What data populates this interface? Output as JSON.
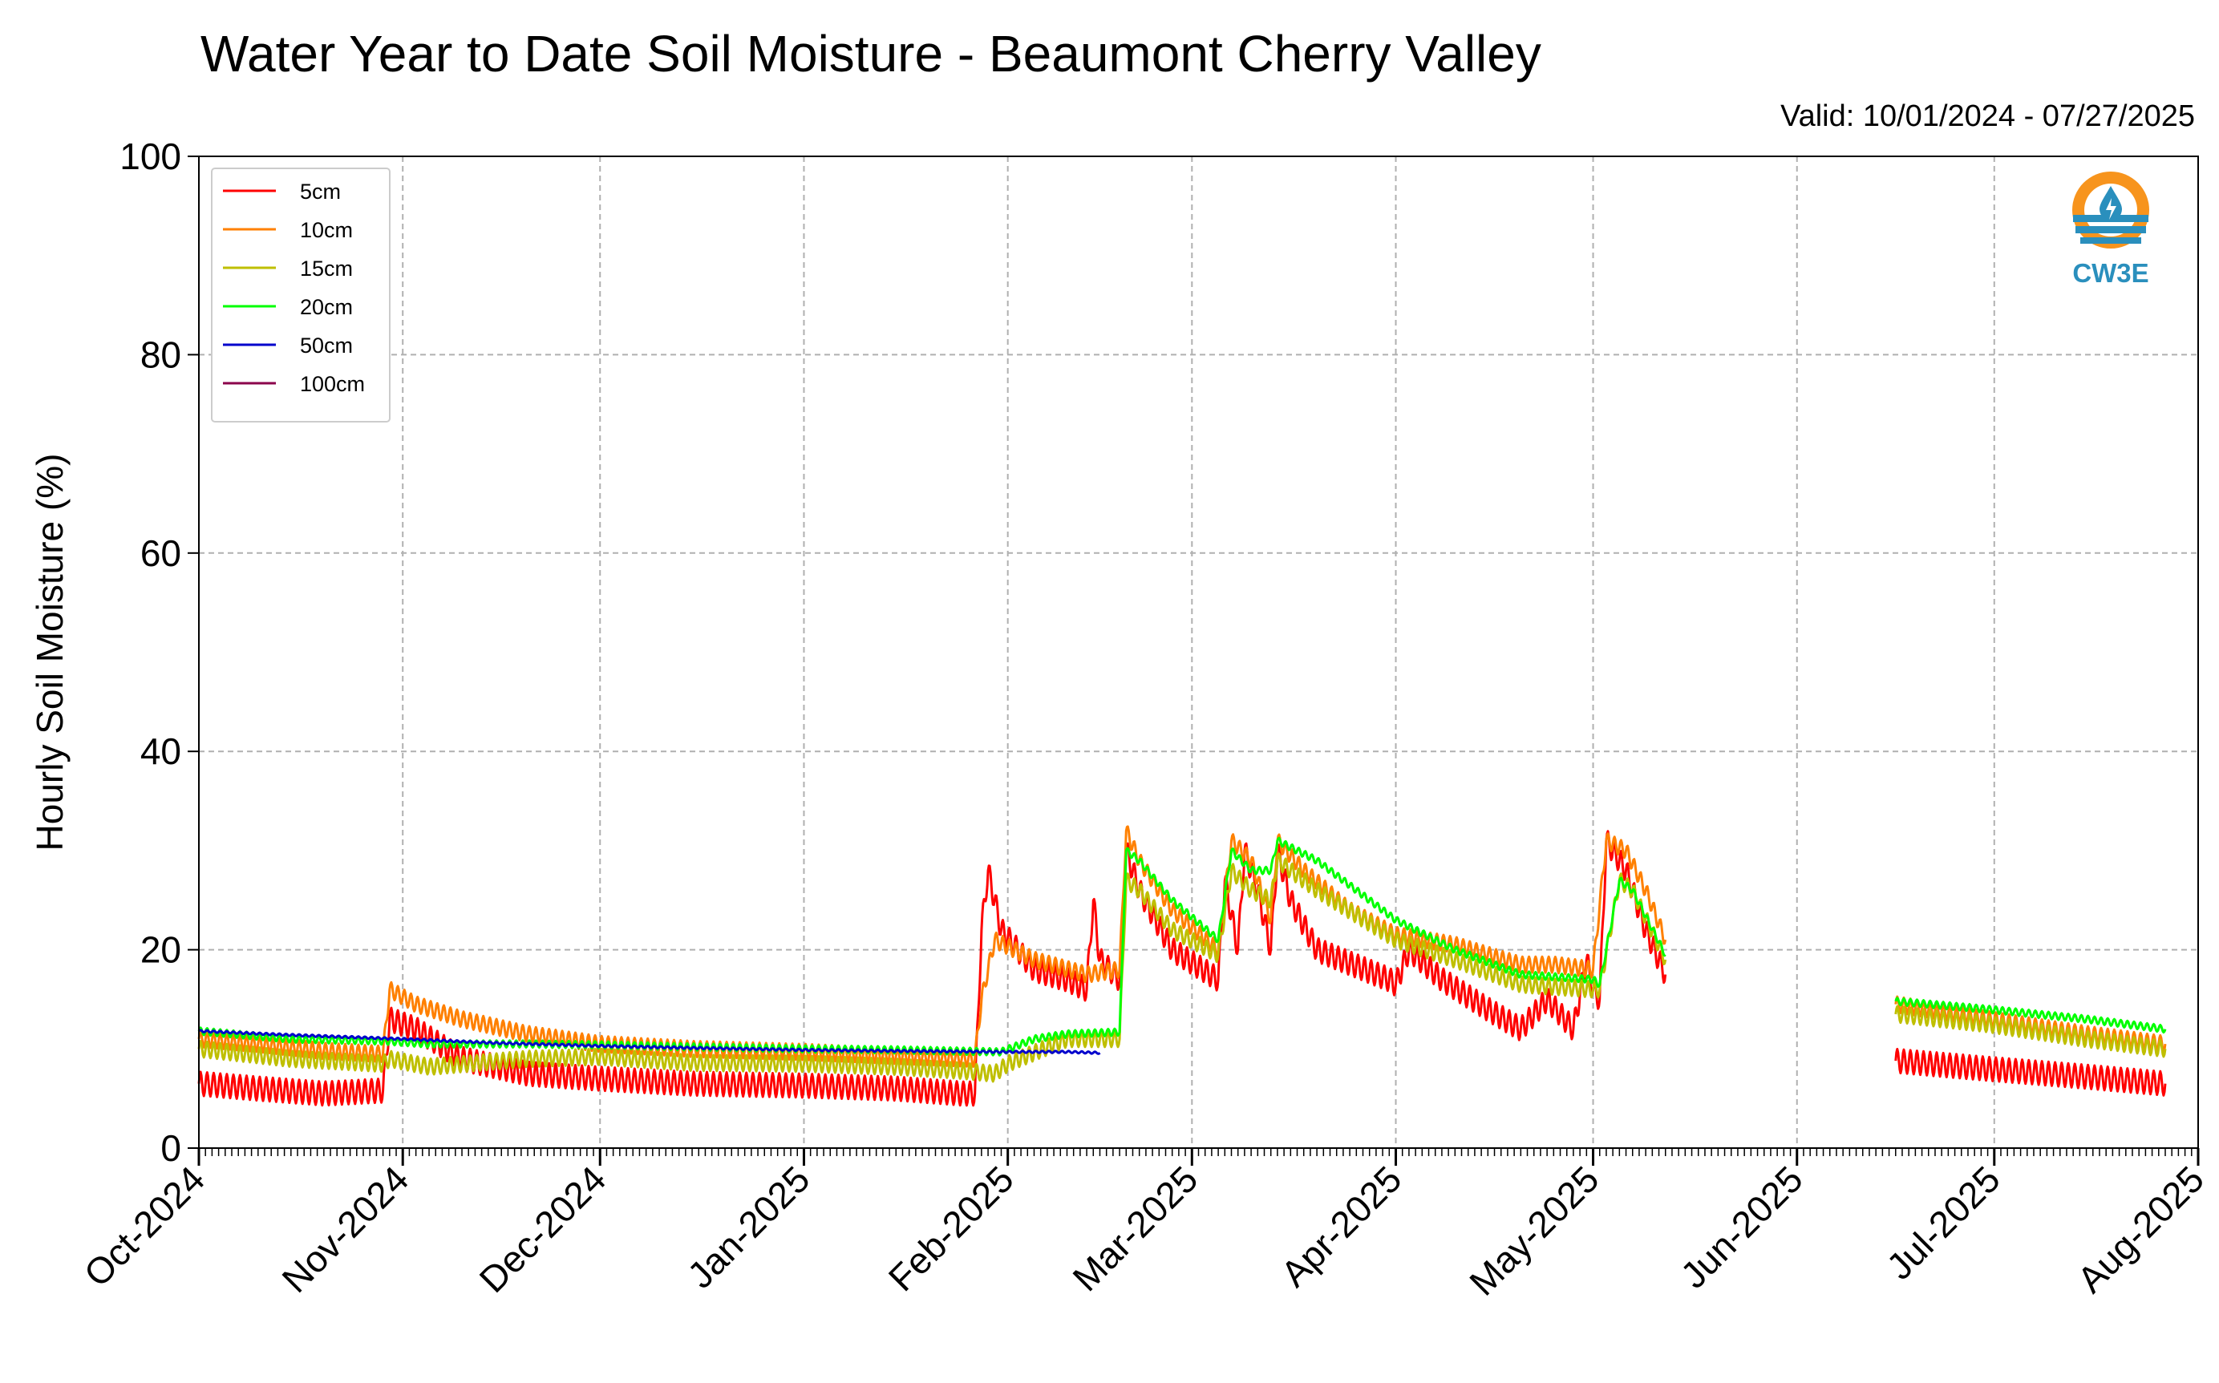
{
  "chart_data": {
    "type": "line",
    "title": "Water Year to Date Soil Moisture - Beaumont Cherry Valley",
    "subtitle": "Valid: 10/01/2024 - 07/27/2025",
    "xlabel": "",
    "ylabel": "Hourly Soil Moisture (%)",
    "ylim": [
      0,
      100
    ],
    "xlim": [
      "2024-10-01",
      "2025-08-01"
    ],
    "yticks": [
      0,
      20,
      40,
      60,
      80,
      100
    ],
    "xticks": [
      {
        "date": "2024-10-01",
        "label": "Oct-2024"
      },
      {
        "date": "2024-11-01",
        "label": "Nov-2024"
      },
      {
        "date": "2024-12-01",
        "label": "Dec-2024"
      },
      {
        "date": "2025-01-01",
        "label": "Jan-2025"
      },
      {
        "date": "2025-02-01",
        "label": "Feb-2025"
      },
      {
        "date": "2025-03-01",
        "label": "Mar-2025"
      },
      {
        "date": "2025-04-01",
        "label": "Apr-2025"
      },
      {
        "date": "2025-05-01",
        "label": "May-2025"
      },
      {
        "date": "2025-06-01",
        "label": "Jun-2025"
      },
      {
        "date": "2025-07-01",
        "label": "Jul-2025"
      },
      {
        "date": "2025-08-01",
        "label": "Aug-2025"
      }
    ],
    "grid": true,
    "legend_position": "top-left",
    "logo_text": "CW3E",
    "series": [
      {
        "name": "5cm",
        "color": "#ff0000",
        "diurnal": 1.2,
        "segments": [
          [
            [
              "2024-10-01",
              6.5
            ],
            [
              "2024-10-10",
              6
            ],
            [
              "2024-10-20",
              5.5
            ],
            [
              "2024-10-29",
              5.8
            ],
            [
              "2024-10-30",
              13
            ],
            [
              "2024-11-03",
              12
            ],
            [
              "2024-11-10",
              9
            ],
            [
              "2024-11-20",
              7.5
            ],
            [
              "2024-12-01",
              7
            ],
            [
              "2024-12-15",
              6.5
            ],
            [
              "2025-01-01",
              6.3
            ],
            [
              "2025-01-15",
              6
            ],
            [
              "2025-01-25",
              5.5
            ],
            [
              "2025-01-27",
              5.5
            ],
            [
              "2025-01-28",
              22
            ],
            [
              "2025-01-29",
              28
            ],
            [
              "2025-01-31",
              22
            ],
            [
              "2025-02-05",
              18
            ],
            [
              "2025-02-10",
              17
            ],
            [
              "2025-02-13",
              16
            ],
            [
              "2025-02-14",
              25
            ],
            [
              "2025-02-15",
              19
            ],
            [
              "2025-02-18",
              17
            ],
            [
              "2025-02-19",
              30
            ],
            [
              "2025-02-21",
              26
            ],
            [
              "2025-02-26",
              20
            ],
            [
              "2025-03-05",
              17
            ],
            [
              "2025-03-06",
              27
            ],
            [
              "2025-03-08",
              20
            ],
            [
              "2025-03-09",
              30
            ],
            [
              "2025-03-11",
              26
            ],
            [
              "2025-03-13",
              20
            ],
            [
              "2025-03-14",
              30
            ],
            [
              "2025-03-16",
              25
            ],
            [
              "2025-03-20",
              20
            ],
            [
              "2025-03-31",
              17
            ],
            [
              "2025-04-01",
              16.5
            ],
            [
              "2025-04-03",
              20
            ],
            [
              "2025-04-08",
              17
            ],
            [
              "2025-04-15",
              14
            ],
            [
              "2025-04-20",
              12
            ],
            [
              "2025-04-24",
              15
            ],
            [
              "2025-04-28",
              12
            ],
            [
              "2025-04-30",
              19
            ],
            [
              "2025-05-01",
              16
            ],
            [
              "2025-05-02",
              15
            ],
            [
              "2025-05-03",
              31
            ],
            [
              "2025-05-06",
              28
            ],
            [
              "2025-05-09",
              22
            ],
            [
              "2025-05-12",
              17.5
            ]
          ],
          [
            [
              "2025-06-16",
              8.8
            ],
            [
              "2025-06-30",
              8
            ],
            [
              "2025-07-15",
              7.2
            ],
            [
              "2025-07-27",
              6.5
            ]
          ]
        ]
      },
      {
        "name": "10cm",
        "color": "#ff8000",
        "diurnal": 0.8,
        "segments": [
          [
            [
              "2024-10-01",
              11
            ],
            [
              "2024-10-10",
              10.5
            ],
            [
              "2024-10-20",
              9.8
            ],
            [
              "2024-10-29",
              9.5
            ],
            [
              "2024-10-30",
              16
            ],
            [
              "2024-11-03",
              14.5
            ],
            [
              "2024-11-10",
              13
            ],
            [
              "2024-11-20",
              11.5
            ],
            [
              "2024-12-01",
              10.5
            ],
            [
              "2024-12-15",
              10
            ],
            [
              "2025-01-01",
              9.7
            ],
            [
              "2025-01-15",
              9.3
            ],
            [
              "2025-01-27",
              9
            ],
            [
              "2025-01-28",
              15
            ],
            [
              "2025-01-30",
              21
            ],
            [
              "2025-02-05",
              19
            ],
            [
              "2025-02-13",
              17.5
            ],
            [
              "2025-02-18",
              18
            ],
            [
              "2025-02-19",
              32
            ],
            [
              "2025-02-21",
              29
            ],
            [
              "2025-02-26",
              24
            ],
            [
              "2025-03-05",
              20
            ],
            [
              "2025-03-07",
              31
            ],
            [
              "2025-03-10",
              29
            ],
            [
              "2025-03-13",
              23
            ],
            [
              "2025-03-14",
              31
            ],
            [
              "2025-03-18",
              28
            ],
            [
              "2025-03-25",
              24
            ],
            [
              "2025-04-01",
              21.5
            ],
            [
              "2025-04-10",
              20.5
            ],
            [
              "2025-04-20",
              18.5
            ],
            [
              "2025-04-25",
              18.5
            ],
            [
              "2025-05-01",
              18
            ],
            [
              "2025-05-03",
              31
            ],
            [
              "2025-05-06",
              30
            ],
            [
              "2025-05-09",
              26
            ],
            [
              "2025-05-12",
              21
            ]
          ],
          [
            [
              "2025-06-16",
              14.5
            ],
            [
              "2025-06-30",
              13
            ],
            [
              "2025-07-15",
              11.5
            ],
            [
              "2025-07-27",
              10.5
            ]
          ]
        ]
      },
      {
        "name": "15cm",
        "color": "#bfbf00",
        "diurnal": 0.8,
        "segments": [
          [
            [
              "2024-10-01",
              10
            ],
            [
              "2024-10-15",
              9
            ],
            [
              "2024-10-29",
              8.5
            ],
            [
              "2024-10-30",
              9
            ],
            [
              "2024-11-05",
              8.2
            ],
            [
              "2024-11-20",
              9
            ],
            [
              "2024-12-01",
              9.2
            ],
            [
              "2024-12-15",
              8.6
            ],
            [
              "2025-01-01",
              8.5
            ],
            [
              "2025-01-15",
              8.2
            ],
            [
              "2025-01-25",
              7.8
            ],
            [
              "2025-01-30",
              7.5
            ],
            [
              "2025-02-01",
              8.5
            ],
            [
              "2025-02-10",
              11
            ],
            [
              "2025-02-18",
              11
            ],
            [
              "2025-02-19",
              27
            ],
            [
              "2025-02-21",
              26
            ],
            [
              "2025-02-26",
              22
            ],
            [
              "2025-03-05",
              19.5
            ],
            [
              "2025-03-07",
              28
            ],
            [
              "2025-03-10",
              26
            ],
            [
              "2025-03-13",
              25
            ],
            [
              "2025-03-14",
              29
            ],
            [
              "2025-03-20",
              26
            ],
            [
              "2025-04-01",
              21
            ],
            [
              "2025-04-10",
              19
            ],
            [
              "2025-04-20",
              16.5
            ],
            [
              "2025-05-01",
              16
            ],
            [
              "2025-05-02",
              16
            ],
            [
              "2025-05-05",
              27
            ],
            [
              "2025-05-07",
              26
            ],
            [
              "2025-05-12",
              19
            ]
          ],
          [
            [
              "2025-06-16",
              13.5
            ],
            [
              "2025-06-30",
              12.5
            ],
            [
              "2025-07-15",
              11
            ],
            [
              "2025-07-27",
              10
            ]
          ]
        ]
      },
      {
        "name": "20cm",
        "color": "#00ff00",
        "diurnal": 0.35,
        "segments": [
          [
            [
              "2024-10-01",
              11.8
            ],
            [
              "2024-10-15",
              11
            ],
            [
              "2024-10-29",
              10.8
            ],
            [
              "2024-11-05",
              10.5
            ],
            [
              "2024-11-20",
              10.5
            ],
            [
              "2024-12-01",
              10.4
            ],
            [
              "2024-12-15",
              10.2
            ],
            [
              "2025-01-01",
              10
            ],
            [
              "2025-01-15",
              9.9
            ],
            [
              "2025-01-31",
              9.7
            ],
            [
              "2025-02-05",
              11
            ],
            [
              "2025-02-10",
              11.5
            ],
            [
              "2025-02-18",
              11.7
            ],
            [
              "2025-02-19",
              30
            ],
            [
              "2025-02-21",
              29
            ],
            [
              "2025-02-26",
              25
            ],
            [
              "2025-03-05",
              21
            ],
            [
              "2025-03-07",
              30
            ],
            [
              "2025-03-10",
              28
            ],
            [
              "2025-03-13",
              28
            ],
            [
              "2025-03-14",
              31
            ],
            [
              "2025-03-20",
              29
            ],
            [
              "2025-04-01",
              23
            ],
            [
              "2025-04-10",
              20
            ],
            [
              "2025-04-20",
              17.5
            ],
            [
              "2025-05-01",
              17
            ],
            [
              "2025-05-02",
              16.5
            ],
            [
              "2025-05-05",
              27
            ],
            [
              "2025-05-07",
              26
            ],
            [
              "2025-05-12",
              19.5
            ]
          ],
          [
            [
              "2025-06-16",
              14.8
            ],
            [
              "2025-06-30",
              14
            ],
            [
              "2025-07-15",
              13
            ],
            [
              "2025-07-27",
              12
            ]
          ]
        ]
      },
      {
        "name": "50cm",
        "color": "#0000cc",
        "diurnal": 0.1,
        "segments": [
          [
            [
              "2024-10-01",
              11.8
            ],
            [
              "2024-10-15",
              11.4
            ],
            [
              "2024-11-01",
              11
            ],
            [
              "2024-11-15",
              10.6
            ],
            [
              "2024-12-01",
              10.3
            ],
            [
              "2024-12-15",
              10.1
            ],
            [
              "2025-01-01",
              9.9
            ],
            [
              "2025-01-15",
              9.8
            ],
            [
              "2025-02-01",
              9.7
            ],
            [
              "2025-02-10",
              9.7
            ],
            [
              "2025-02-15",
              9.6
            ]
          ]
        ]
      },
      {
        "name": "100cm",
        "color": "#8b004b",
        "diurnal": 0,
        "segments": []
      }
    ]
  }
}
